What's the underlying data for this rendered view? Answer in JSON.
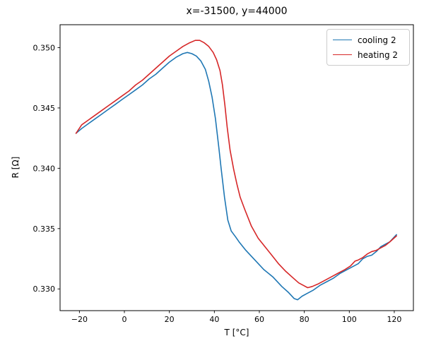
{
  "chart_data": {
    "type": "line",
    "title": "x=-31500, y=44000",
    "xlabel": "T [°C]",
    "ylabel": "R [Ω]",
    "xlim": [
      -28.6,
      128.5
    ],
    "ylim": [
      0.3282,
      0.3519
    ],
    "xticks": [
      -20,
      0,
      20,
      40,
      60,
      80,
      100,
      120
    ],
    "xtick_labels": [
      "−20",
      "0",
      "20",
      "40",
      "60",
      "80",
      "100",
      "120"
    ],
    "yticks": [
      0.33,
      0.335,
      0.34,
      0.345,
      0.35
    ],
    "ytick_labels": [
      "0.330",
      "0.335",
      "0.340",
      "0.345",
      "0.350"
    ],
    "grid": false,
    "axis_color": "#000000",
    "text_color": "#000000",
    "legend_position": "upper right",
    "series": [
      {
        "name": "cooling 2",
        "color": "#1f77b4",
        "linewidth": 1.6,
        "points": [
          [
            -21.5,
            0.3429
          ],
          [
            -19,
            0.3433
          ],
          [
            -16,
            0.3437
          ],
          [
            -13,
            0.3441
          ],
          [
            -10,
            0.3445
          ],
          [
            -7,
            0.3449
          ],
          [
            -4,
            0.3453
          ],
          [
            -1,
            0.3457
          ],
          [
            2,
            0.3461
          ],
          [
            5,
            0.3465
          ],
          [
            8,
            0.3469
          ],
          [
            11,
            0.3474
          ],
          [
            14,
            0.3478
          ],
          [
            17,
            0.3483
          ],
          [
            20,
            0.3488
          ],
          [
            23,
            0.3492
          ],
          [
            26,
            0.3495
          ],
          [
            28,
            0.3496
          ],
          [
            30,
            0.3495
          ],
          [
            32,
            0.3493
          ],
          [
            34,
            0.3489
          ],
          [
            36,
            0.3482
          ],
          [
            37.5,
            0.3472
          ],
          [
            39,
            0.3459
          ],
          [
            40.5,
            0.3441
          ],
          [
            42,
            0.3417
          ],
          [
            43,
            0.34
          ],
          [
            44.5,
            0.3376
          ],
          [
            46,
            0.3357
          ],
          [
            47.5,
            0.3348
          ],
          [
            49.5,
            0.3343
          ],
          [
            51,
            0.3339
          ],
          [
            54,
            0.3332
          ],
          [
            58,
            0.3324
          ],
          [
            62,
            0.3316
          ],
          [
            66,
            0.331
          ],
          [
            70,
            0.3302
          ],
          [
            73,
            0.3297
          ],
          [
            75.5,
            0.3292
          ],
          [
            77,
            0.3291
          ],
          [
            79,
            0.3294
          ],
          [
            81,
            0.3296
          ],
          [
            84,
            0.3299
          ],
          [
            87,
            0.3303
          ],
          [
            90,
            0.3306
          ],
          [
            93,
            0.3309
          ],
          [
            96,
            0.3313
          ],
          [
            99,
            0.3316
          ],
          [
            102,
            0.3319
          ],
          [
            104,
            0.3321
          ],
          [
            106,
            0.3325
          ],
          [
            108,
            0.3327
          ],
          [
            110,
            0.3328
          ],
          [
            112,
            0.3331
          ],
          [
            114,
            0.3335
          ],
          [
            116,
            0.3337
          ],
          [
            118,
            0.3339
          ],
          [
            121,
            0.3345
          ]
        ]
      },
      {
        "name": "heating 2",
        "color": "#d62728",
        "linewidth": 1.6,
        "points": [
          [
            -21.5,
            0.3429
          ],
          [
            -19,
            0.3436
          ],
          [
            -16,
            0.344
          ],
          [
            -13,
            0.3444
          ],
          [
            -10,
            0.3448
          ],
          [
            -7,
            0.3452
          ],
          [
            -4,
            0.3456
          ],
          [
            -1,
            0.346
          ],
          [
            2,
            0.3464
          ],
          [
            5,
            0.3469
          ],
          [
            8,
            0.3473
          ],
          [
            11,
            0.3478
          ],
          [
            14,
            0.3483
          ],
          [
            17,
            0.3488
          ],
          [
            20,
            0.3493
          ],
          [
            23,
            0.3497
          ],
          [
            26,
            0.3501
          ],
          [
            29,
            0.3504
          ],
          [
            31.5,
            0.3506
          ],
          [
            33.5,
            0.3506
          ],
          [
            35.5,
            0.3504
          ],
          [
            37.5,
            0.3501
          ],
          [
            39.5,
            0.3496
          ],
          [
            41,
            0.349
          ],
          [
            42.5,
            0.3481
          ],
          [
            43.6,
            0.3469
          ],
          [
            44.7,
            0.3452
          ],
          [
            45.7,
            0.3434
          ],
          [
            47,
            0.3415
          ],
          [
            48.6,
            0.3399
          ],
          [
            50,
            0.3387
          ],
          [
            51.5,
            0.3376
          ],
          [
            53.5,
            0.3366
          ],
          [
            56.5,
            0.3352
          ],
          [
            59.5,
            0.3342
          ],
          [
            62.5,
            0.3335
          ],
          [
            65.5,
            0.3328
          ],
          [
            68.5,
            0.3321
          ],
          [
            71.5,
            0.3315
          ],
          [
            74.5,
            0.331
          ],
          [
            77.5,
            0.3305
          ],
          [
            79.5,
            0.3303
          ],
          [
            81.5,
            0.3301
          ],
          [
            83.5,
            0.3302
          ],
          [
            86,
            0.3304
          ],
          [
            89,
            0.3307
          ],
          [
            92,
            0.331
          ],
          [
            95,
            0.3313
          ],
          [
            98,
            0.3316
          ],
          [
            100.5,
            0.3319
          ],
          [
            102.5,
            0.3323
          ],
          [
            104,
            0.3324
          ],
          [
            106,
            0.3326
          ],
          [
            108,
            0.3329
          ],
          [
            110,
            0.3331
          ],
          [
            112,
            0.3332
          ],
          [
            114,
            0.3334
          ],
          [
            116,
            0.3336
          ],
          [
            118,
            0.3339
          ],
          [
            121,
            0.3344
          ]
        ]
      }
    ]
  }
}
